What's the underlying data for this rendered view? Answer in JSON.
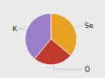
{
  "chart_data": {
    "type": "pie",
    "categories": [
      "Se",
      "O",
      "K"
    ],
    "values": [
      36,
      25,
      39
    ],
    "colors": [
      "#E8A020",
      "#C0392B",
      "#9B7EC8"
    ]
  }
}
